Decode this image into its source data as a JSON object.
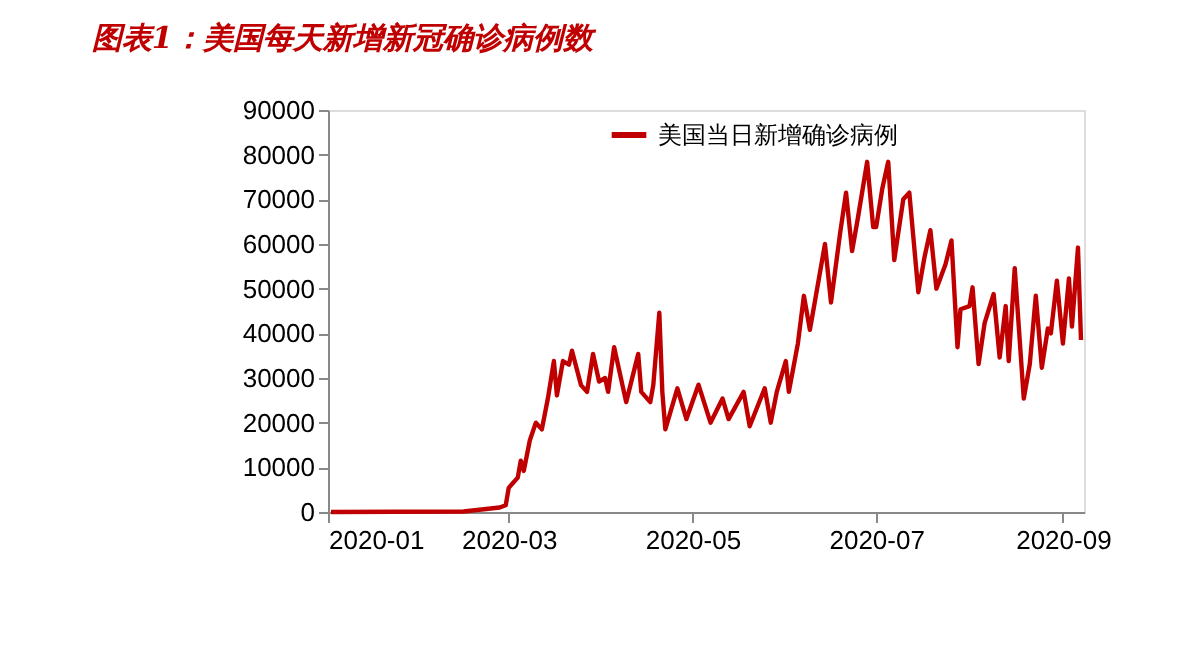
{
  "chart_data": {
    "type": "line",
    "title": "图表1：美国每天新增新冠确诊病例数",
    "x": [
      "2020-01-02",
      "2020-02-15",
      "2020-02-27",
      "2020-02-29",
      "2020-03-01",
      "2020-03-04",
      "2020-03-05",
      "2020-03-06",
      "2020-03-08",
      "2020-03-10",
      "2020-03-12",
      "2020-03-14",
      "2020-03-16",
      "2020-03-17",
      "2020-03-19",
      "2020-03-21",
      "2020-03-22",
      "2020-03-25",
      "2020-03-27",
      "2020-03-29",
      "2020-03-31",
      "2020-04-02",
      "2020-04-03",
      "2020-04-05",
      "2020-04-09",
      "2020-04-13",
      "2020-04-14",
      "2020-04-17",
      "2020-04-18",
      "2020-04-20",
      "2020-04-21",
      "2020-04-22",
      "2020-04-26",
      "2020-04-29",
      "2020-05-03",
      "2020-05-07",
      "2020-05-11",
      "2020-05-13",
      "2020-05-18",
      "2020-05-20",
      "2020-05-25",
      "2020-05-27",
      "2020-05-29",
      "2020-06-01",
      "2020-06-02",
      "2020-06-05",
      "2020-06-07",
      "2020-06-09",
      "2020-06-14",
      "2020-06-16",
      "2020-06-19",
      "2020-06-21",
      "2020-06-23",
      "2020-06-25",
      "2020-06-28",
      "2020-06-30",
      "2020-07-01",
      "2020-07-03",
      "2020-07-05",
      "2020-07-07",
      "2020-07-10",
      "2020-07-12",
      "2020-07-15",
      "2020-07-17",
      "2020-07-19",
      "2020-07-21",
      "2020-07-24",
      "2020-07-26",
      "2020-07-28",
      "2020-07-29",
      "2020-08-01",
      "2020-08-02",
      "2020-08-04",
      "2020-08-06",
      "2020-08-09",
      "2020-08-11",
      "2020-08-13",
      "2020-08-14",
      "2020-08-16",
      "2020-08-19",
      "2020-08-21",
      "2020-08-23",
      "2020-08-25",
      "2020-08-27",
      "2020-08-28",
      "2020-08-30",
      "2020-09-01",
      "2020-09-03",
      "2020-09-04",
      "2020-09-06",
      "2020-09-07"
    ],
    "series": [
      {
        "name": "美国当日新增确诊病例",
        "color": "#c00000",
        "values": [
          0,
          100,
          1000,
          1500,
          5400,
          7700,
          11500,
          9200,
          16000,
          20000,
          18500,
          25400,
          33800,
          26100,
          33800,
          33000,
          36100,
          28400,
          26900,
          35400,
          29200,
          30000,
          26900,
          36900,
          24600,
          35400,
          26900,
          24600,
          28400,
          44600,
          26900,
          18500,
          27700,
          20800,
          28500,
          20000,
          25400,
          20800,
          26900,
          19200,
          27700,
          20000,
          26900,
          33800,
          26900,
          37700,
          48400,
          40800,
          60000,
          46900,
          62300,
          71500,
          58400,
          66100,
          78400,
          63800,
          63800,
          72300,
          78400,
          56400,
          70000,
          71500,
          49200,
          56900,
          63100,
          50000,
          55400,
          60800,
          36900,
          45400,
          46100,
          50300,
          33100,
          42300,
          48800,
          34600,
          46100,
          33800,
          54600,
          25400,
          33100,
          48400,
          32300,
          41100,
          40000,
          51800,
          37700,
          52300,
          41500,
          59200,
          38500
        ]
      }
    ],
    "xlim": [
      "2020-01-01",
      "2020-09-08"
    ],
    "xticks": [
      "2020-01",
      "2020-03",
      "2020-05",
      "2020-07",
      "2020-09"
    ],
    "ylim": [
      0,
      90000
    ],
    "yticks": [
      0,
      10000,
      20000,
      30000,
      40000,
      50000,
      60000,
      70000,
      80000,
      90000
    ],
    "legend": "top",
    "grid": false,
    "line_style": "solid",
    "marker": "none"
  }
}
